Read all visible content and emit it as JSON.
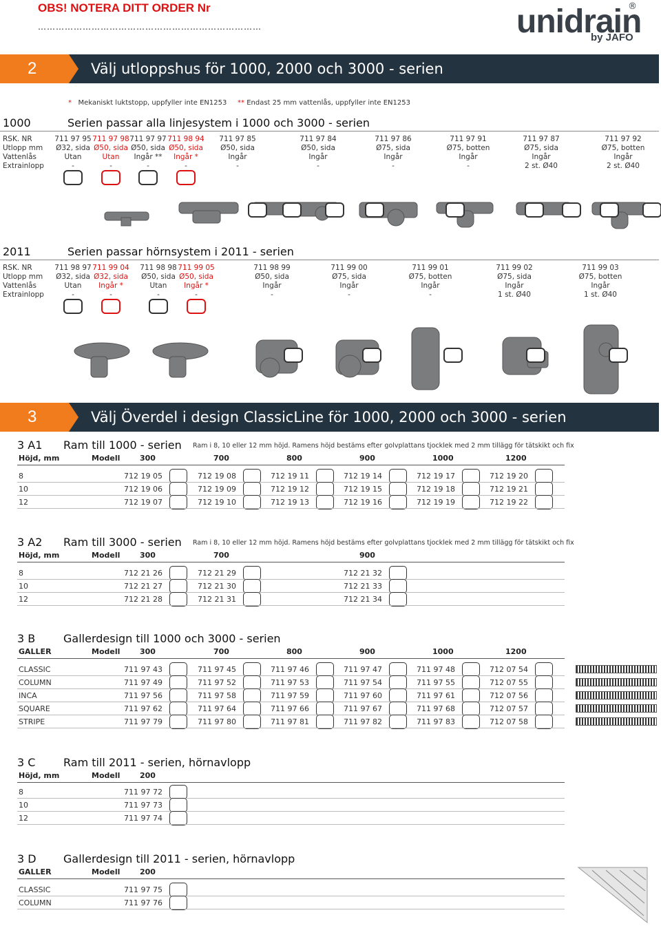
{
  "header": {
    "notice": "OBS! NOTERA DITT ORDER Nr",
    "dots": "…………………………………………………………………",
    "logo": "unidrain",
    "logo_reg": "®",
    "logo_sub": "by JAFO"
  },
  "section2": {
    "number": "2",
    "title": "Välj utloppshus för 1000, 2000 och 3000 - serien",
    "footnote1_mark": "*",
    "footnote1": "Mekaniskt luktstopp, uppfyller inte EN1253",
    "footnote2_mark": "**",
    "footnote2": "Endast 25 mm vattenlås, uppfyller inte EN1253",
    "row_labels": [
      "RSK. NR",
      "Utlopp mm",
      "Vattenlås",
      "Extrainlopp"
    ],
    "s1000": {
      "code": "1000",
      "desc": "Serien passar alla linjesystem i 1000 och 3000 - serien",
      "products": [
        {
          "rsk": "711 97 95",
          "utlopp": "Ø32, sida",
          "vattenlas": "Utan",
          "extra": "-",
          "red": false
        },
        {
          "rsk": "711 97 98",
          "utlopp": "Ø50, sida",
          "vattenlas": "Utan",
          "extra": "-",
          "red": true
        },
        {
          "rsk": "711 97 97",
          "utlopp": "Ø50, sida",
          "vattenlas": "Ingår **",
          "extra": "-",
          "red": false
        },
        {
          "rsk": "711 98 94",
          "utlopp": "Ø50, sida",
          "vattenlas": "Ingår *",
          "extra": "-",
          "red": true
        },
        {
          "rsk": "711 97 85",
          "utlopp": "Ø50, sida",
          "vattenlas": "Ingår",
          "extra": "-",
          "red": false
        },
        {
          "rsk": "711 97 84",
          "utlopp": "Ø50, sida",
          "vattenlas": "Ingår",
          "extra": "-",
          "red": false
        },
        {
          "rsk": "711 97 86",
          "utlopp": "Ø75, sida",
          "vattenlas": "Ingår",
          "extra": "-",
          "red": false
        },
        {
          "rsk": "711 97 91",
          "utlopp": "Ø75, botten",
          "vattenlas": "Ingår",
          "extra": "-",
          "red": false
        },
        {
          "rsk": "711 97 87",
          "utlopp": "Ø75, sida",
          "vattenlas": "Ingår",
          "extra": "2 st.  Ø40",
          "red": false
        },
        {
          "rsk": "711 97 92",
          "utlopp": "Ø75, botten",
          "vattenlas": "Ingår",
          "extra": "2 st.  Ø40",
          "red": false
        }
      ]
    },
    "s2011": {
      "code": "2011",
      "desc": "Serien passar hörnsystem i 2011 - serien",
      "products": [
        {
          "rsk": "711 98 97",
          "utlopp": "Ø32, sida",
          "vattenlas": "Utan",
          "extra": "-",
          "red": false
        },
        {
          "rsk": "711 99 04",
          "utlopp": "Ø32, sida",
          "vattenlas": "Ingår *",
          "extra": "-",
          "red": true
        },
        {
          "rsk": "711 98 98",
          "utlopp": "Ø50, sida",
          "vattenlas": "Utan",
          "extra": "-",
          "red": false
        },
        {
          "rsk": "711 99 05",
          "utlopp": "Ø50, sida",
          "vattenlas": "Ingår *",
          "extra": "-",
          "red": true
        },
        {
          "rsk": "711 98 99",
          "utlopp": "Ø50, sida",
          "vattenlas": "Ingår",
          "extra": "-",
          "red": false
        },
        {
          "rsk": "711 99 00",
          "utlopp": "Ø75, sida",
          "vattenlas": "Ingår",
          "extra": "-",
          "red": false
        },
        {
          "rsk": "711 99 01",
          "utlopp": "Ø75, botten",
          "vattenlas": "Ingår",
          "extra": "-",
          "red": false
        },
        {
          "rsk": "711 99 02",
          "utlopp": "Ø75, sida",
          "vattenlas": "Ingår",
          "extra": "1 st. Ø40",
          "red": false
        },
        {
          "rsk": "711 99 03",
          "utlopp": "Ø75, botten",
          "vattenlas": "Ingår",
          "extra": "1 st. Ø40",
          "red": false
        }
      ]
    }
  },
  "section3": {
    "number": "3",
    "title": "Välj Överdel i design ClassicLine för 1000, 2000 och 3000 - serien",
    "a1": {
      "id": "3 A1",
      "title": "Ram till 1000 - serien",
      "note": "Ram i 8, 10 eller 12 mm höjd. Ramens höjd bestäms efter golvplattans tjocklek med 2 mm tillägg för tätskikt och fix",
      "hdr_label": "Höjd, mm",
      "hdr_model": "Modell",
      "cols": [
        "300",
        "700",
        "800",
        "900",
        "1000",
        "1200"
      ],
      "rows": [
        {
          "label": "8",
          "cells": [
            "712 19 05",
            "712 19 08",
            "712 19 11",
            "712 19 14",
            "712 19 17",
            "712 19 20"
          ]
        },
        {
          "label": "10",
          "cells": [
            "712 19 06",
            "712 19 09",
            "712 19 12",
            "712 19 15",
            "712 19 18",
            "712 19 21"
          ]
        },
        {
          "label": "12",
          "cells": [
            "712 19 07",
            "712 19 10",
            "712 19 13",
            "712 19 16",
            "712 19 19",
            "712 19 22"
          ]
        }
      ]
    },
    "a2": {
      "id": "3 A2",
      "title": "Ram till 3000 - serien",
      "note": "Ram i 8, 10 eller 12 mm höjd. Ramens höjd bestäms efter golvplattans tjocklek med 2 mm tillägg för tätskikt och fix",
      "hdr_label": "Höjd, mm",
      "hdr_model": "Modell",
      "cols": [
        "300",
        "700",
        "900"
      ],
      "rows": [
        {
          "label": "8",
          "cells": [
            "712 21 26",
            "712 21 29",
            "712 21 32"
          ]
        },
        {
          "label": "10",
          "cells": [
            "712 21 27",
            "712 21 30",
            "712 21 33"
          ]
        },
        {
          "label": "12",
          "cells": [
            "712 21 28",
            "712 21 31",
            "712 21 34"
          ]
        }
      ]
    },
    "b": {
      "id": "3 B",
      "title": "Gallerdesign till 1000 och 3000 - serien",
      "hdr_label": "GALLER",
      "hdr_model": "Modell",
      "cols": [
        "300",
        "700",
        "800",
        "900",
        "1000",
        "1200"
      ],
      "rows": [
        {
          "label": "CLASSIC",
          "cells": [
            "711 97 43",
            "711 97 45",
            "711 97 46",
            "711 97 47",
            "711 97 48",
            "712 07 54"
          ]
        },
        {
          "label": "COLUMN",
          "cells": [
            "711 97 49",
            "711 97 52",
            "711 97 53",
            "711 97 54",
            "711 97 55",
            "712 07 55"
          ]
        },
        {
          "label": "INCA",
          "cells": [
            "711 97 56",
            "711 97 58",
            "711 97 59",
            "711 97 60",
            "711 97 61",
            "712 07 56"
          ]
        },
        {
          "label": "SQUARE",
          "cells": [
            "711 97 62",
            "711 97 64",
            "711 97 66",
            "711 97 67",
            "711 97 68",
            "712 07 57"
          ]
        },
        {
          "label": "STRIPE",
          "cells": [
            "711 97 79",
            "711 97 80",
            "711 97 81",
            "711 97 82",
            "711 97 83",
            "712 07 58"
          ]
        }
      ]
    },
    "c": {
      "id": "3 C",
      "title": "Ram till 2011 - serien, hörnavlopp",
      "hdr_label": "Höjd, mm",
      "hdr_model": "Modell",
      "cols": [
        "200"
      ],
      "rows": [
        {
          "label": "8",
          "cells": [
            "711 97 72"
          ]
        },
        {
          "label": "10",
          "cells": [
            "711 97 73"
          ]
        },
        {
          "label": "12",
          "cells": [
            "711 97 74"
          ]
        }
      ]
    },
    "d": {
      "id": "3 D",
      "title": "Gallerdesign till 2011 - serien, hörnavlopp",
      "hdr_label": "GALLER",
      "hdr_model": "Modell",
      "cols": [
        "200"
      ],
      "rows": [
        {
          "label": "CLASSIC",
          "cells": [
            "711 97 75"
          ]
        },
        {
          "label": "COLUMN",
          "cells": [
            "711 97 76"
          ]
        }
      ]
    }
  }
}
